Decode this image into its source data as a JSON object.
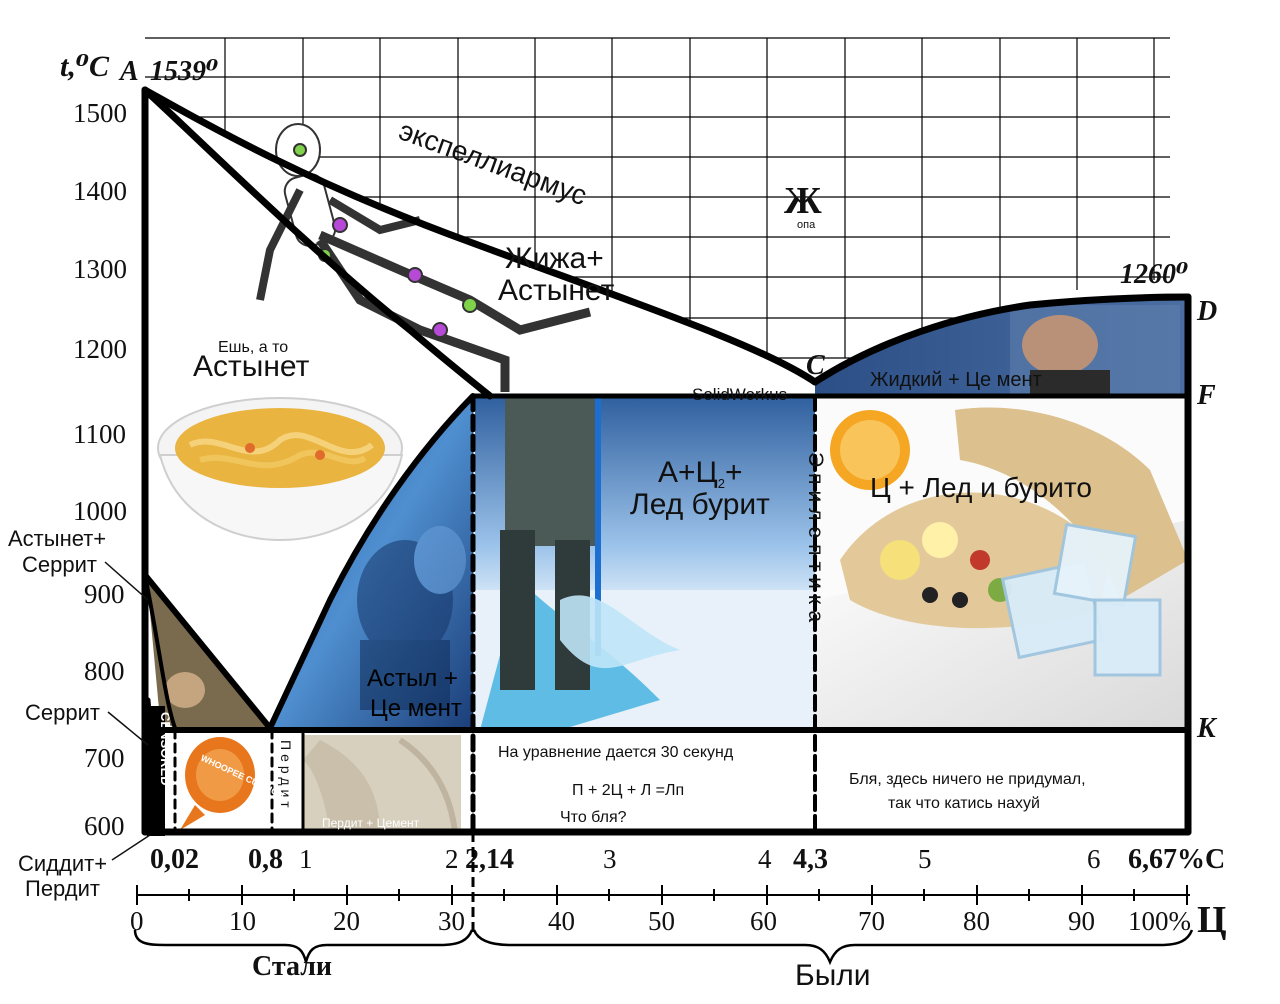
{
  "axis": {
    "y_title": "t,⁰C",
    "y_ticks": [
      "1500",
      "1400",
      "1300",
      "1200",
      "1100",
      "1000",
      "900",
      "800",
      "700",
      "600"
    ],
    "x_carbon_ticks": [
      {
        "label": "0,02",
        "bold": true
      },
      {
        "label": "0,8",
        "bold": true
      },
      {
        "label": "1",
        "bold": false
      },
      {
        "label": "2",
        "bold": false
      },
      {
        "label": "2,14",
        "bold": true
      },
      {
        "label": "3",
        "bold": false
      },
      {
        "label": "4",
        "bold": false
      },
      {
        "label": "4,3",
        "bold": true
      },
      {
        "label": "5",
        "bold": false
      },
      {
        "label": "6",
        "bold": false
      },
      {
        "label": "6,67%C",
        "bold": true
      }
    ],
    "x_percent_ticks": [
      "0",
      "10",
      "20",
      "30",
      "40",
      "50",
      "60",
      "70",
      "80",
      "90",
      "100%"
    ],
    "x_percent_unit": "Ц",
    "brace_left_label": "Стали",
    "brace_right_label": "Были"
  },
  "points": {
    "A": "A",
    "A_temp": "1539⁰",
    "C": "C",
    "D": "D",
    "D_temp": "1260⁰",
    "F": "F",
    "K": "K"
  },
  "regions": {
    "liquid_big": "Ж",
    "liquid_small": "опа",
    "curve_label": "экспеллиармус",
    "zhizha_line1": "Жижа+",
    "zhizha_line2": "Астынет",
    "eat_small": "Ешь, а то",
    "eat_big": "Астынет",
    "astynet_serrit_1": "Астынет+",
    "astynet_serrit_2": "Серрит",
    "serrit": "Серрит",
    "siddit_1": "Сиддит+",
    "siddit_2": "Пердит",
    "astyl_1": "Астыл +",
    "astyl_2": "Це мент",
    "solidworkus": "SolidWorkus",
    "ice_1": "А+Ц",
    "ice_sub": "2",
    "ice_plus": "+",
    "ice_2": "Лед бурит",
    "burrito": "Ц + Лед и бурито",
    "liquid_cement": "Жидкий + Це мент",
    "epileptika": "Эпилептика",
    "perdit_vertical": "Пердит",
    "perdit_cement": "Пердит + Цемент",
    "censored": "CENSORED",
    "cushion": "WHOOPEE CUSHION",
    "eq_title": "На уравнение дается 30 секунд",
    "eq_formula": "П + 2Ц + Л =Лп",
    "eq_question": "Что бля?",
    "bottom_right_1": "Бля, здесь ничего не придумал,",
    "bottom_right_2": "так что катись нахуй"
  },
  "colors": {
    "frame": "#000000",
    "ice_sky": "#3a78c4",
    "ice_snow": "#eef4fb",
    "burrito_plate": "#f2f2f2",
    "tortilla": "#e3c999",
    "orange": "#f5a623",
    "soup": "#e9b440",
    "cushion": "#e8761c",
    "pants": "#d8d0bf",
    "stand": "#7fd24a"
  }
}
